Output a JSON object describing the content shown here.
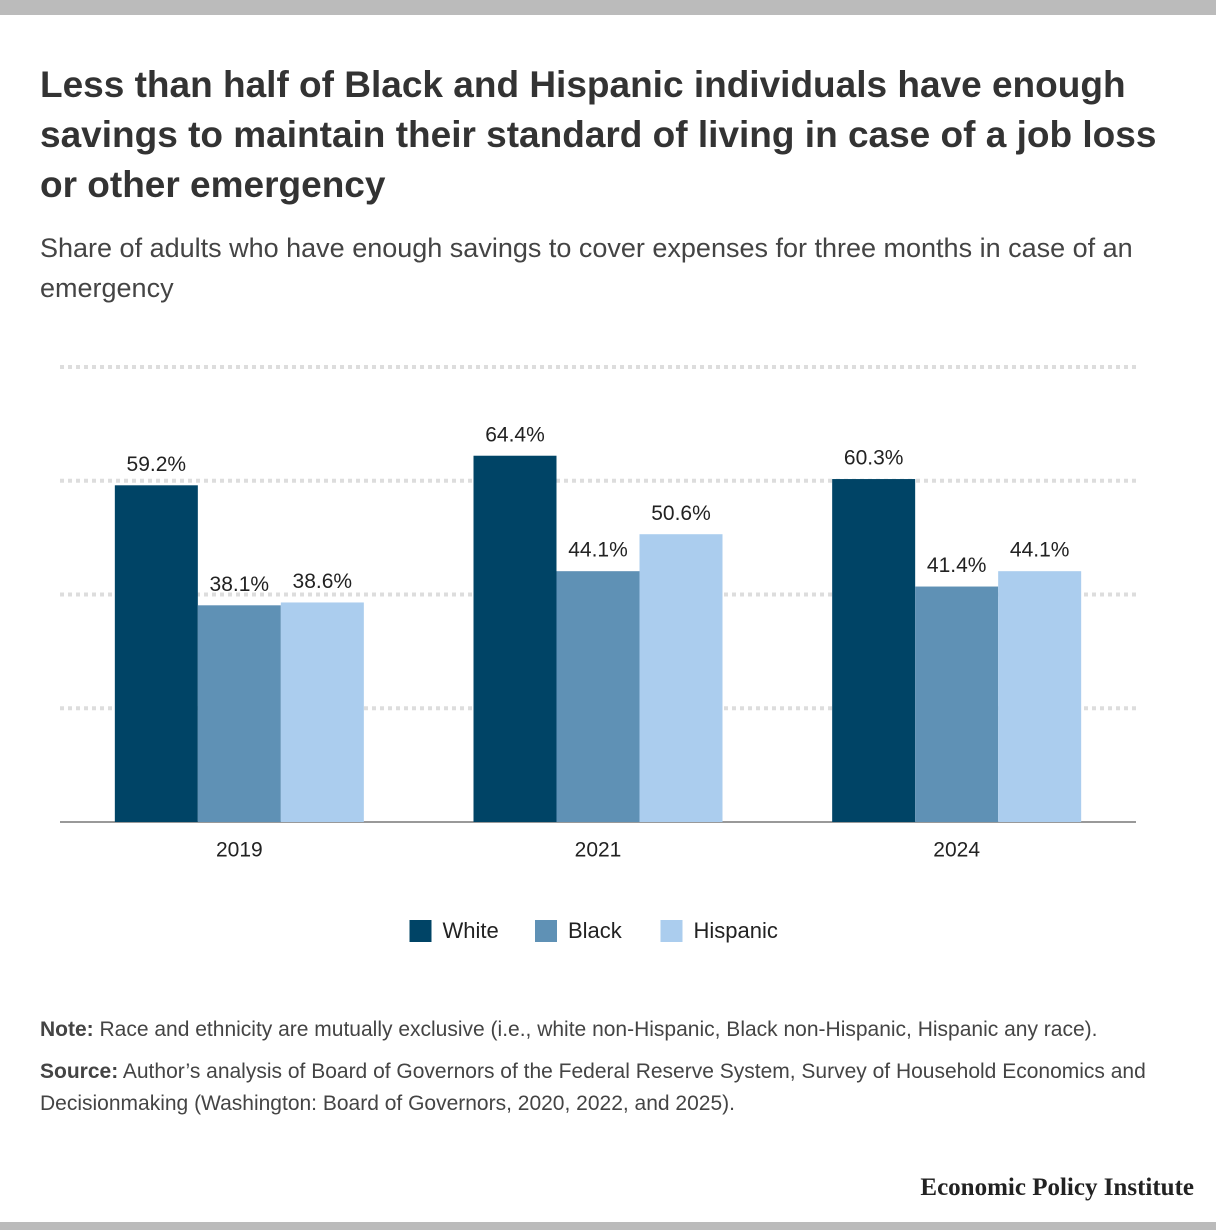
{
  "chart_data": {
    "type": "bar",
    "title": "Less than half of Black and Hispanic individuals have enough savings to maintain their standard of living in case of a job loss or other emergency",
    "subtitle": "Share of adults who have enough savings to cover expenses for three months in case of an emergency",
    "categories": [
      "2019",
      "2021",
      "2024"
    ],
    "series": [
      {
        "name": "White",
        "color": "#004466",
        "values": [
          59.2,
          64.4,
          60.3
        ],
        "value_labels": [
          "59.2%",
          "64.4%",
          "60.3%"
        ]
      },
      {
        "name": "Black",
        "color": "#5f91b5",
        "values": [
          38.1,
          44.1,
          41.4
        ],
        "value_labels": [
          "38.1%",
          "44.1%",
          "41.4%"
        ]
      },
      {
        "name": "Hispanic",
        "color": "#abcdee",
        "values": [
          38.6,
          50.6,
          44.1
        ],
        "value_labels": [
          "38.6%",
          "50.6%",
          "44.1%"
        ]
      }
    ],
    "ylim": [
      0,
      80
    ],
    "yticks": [
      0,
      20,
      40,
      60,
      80
    ],
    "grid": true,
    "legend": "bottom"
  },
  "note": {
    "label": "Note:",
    "text": "Race and ethnicity are mutually exclusive (i.e., white non-Hispanic, Black non-Hispanic, Hispanic any race)."
  },
  "source": {
    "label": "Source:",
    "text": "Author’s analysis of Board of Governors of the Federal Reserve System, Survey of Household Economics and Decisionmaking (Washington: Board of Governors, 2020, 2022, and 2025)."
  },
  "footer": "Economic Policy Institute"
}
